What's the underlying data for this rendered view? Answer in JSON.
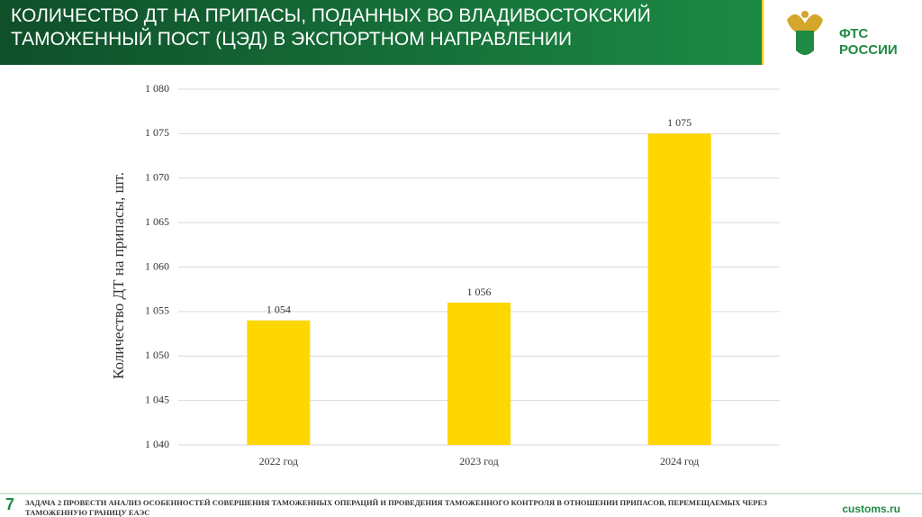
{
  "header": {
    "title_lines": [
      "КОЛИЧЕСТВО ДТ НА ПРИПАСЫ, ПОДАННЫХ ВО ВЛАДИВОСТОКСКИЙ",
      "ТАМОЖЕННЫЙ ПОСТ (ЦЭД) В ЭКСПОРТНОМ НАПРАВЛЕНИИ"
    ],
    "logo_lines": [
      "ФТС",
      "РОССИИ"
    ]
  },
  "chart_data": {
    "type": "bar",
    "y_label": "Количество ДТ на припасы, шт.",
    "categories": [
      "2022 год",
      "2023 год",
      "2024 год"
    ],
    "values": [
      1054,
      1056,
      1075
    ],
    "value_labels": [
      "1 054",
      "1 056",
      "1 075"
    ],
    "color": "#ffd700",
    "ylim": [
      1040,
      1080
    ],
    "yticks": [
      {
        "value": 1040,
        "label": "1 040"
      },
      {
        "value": 1045,
        "label": "1 045"
      },
      {
        "value": 1050,
        "label": "1 050"
      },
      {
        "value": 1055,
        "label": "1 055"
      },
      {
        "value": 1060,
        "label": "1 060"
      },
      {
        "value": 1065,
        "label": "1 065"
      },
      {
        "value": 1070,
        "label": "1 070"
      },
      {
        "value": 1075,
        "label": "1 075"
      },
      {
        "value": 1080,
        "label": "1 080"
      }
    ],
    "grid": true
  },
  "footer": {
    "page": "7",
    "lines": [
      "ЗАДАЧА 2 ПРОВЕСТИ АНАЛИЗ ОСОБЕННОСТЕЙ СОВЕРШЕНИЯ ТАМОЖЕННЫХ ОПЕРАЦИЙ И ПРОВЕДЕНИЯ ТАМОЖЕННОГО КОНТРОЛЯ В ОТНОШЕНИИ ПРИПАСОВ, ПЕРЕМЕЩАЕМЫХ ЧЕРЕЗ",
      "ТАМОЖЕННУЮ ГРАНИЦУ ЕАЭС"
    ],
    "site": "customs.ru"
  }
}
